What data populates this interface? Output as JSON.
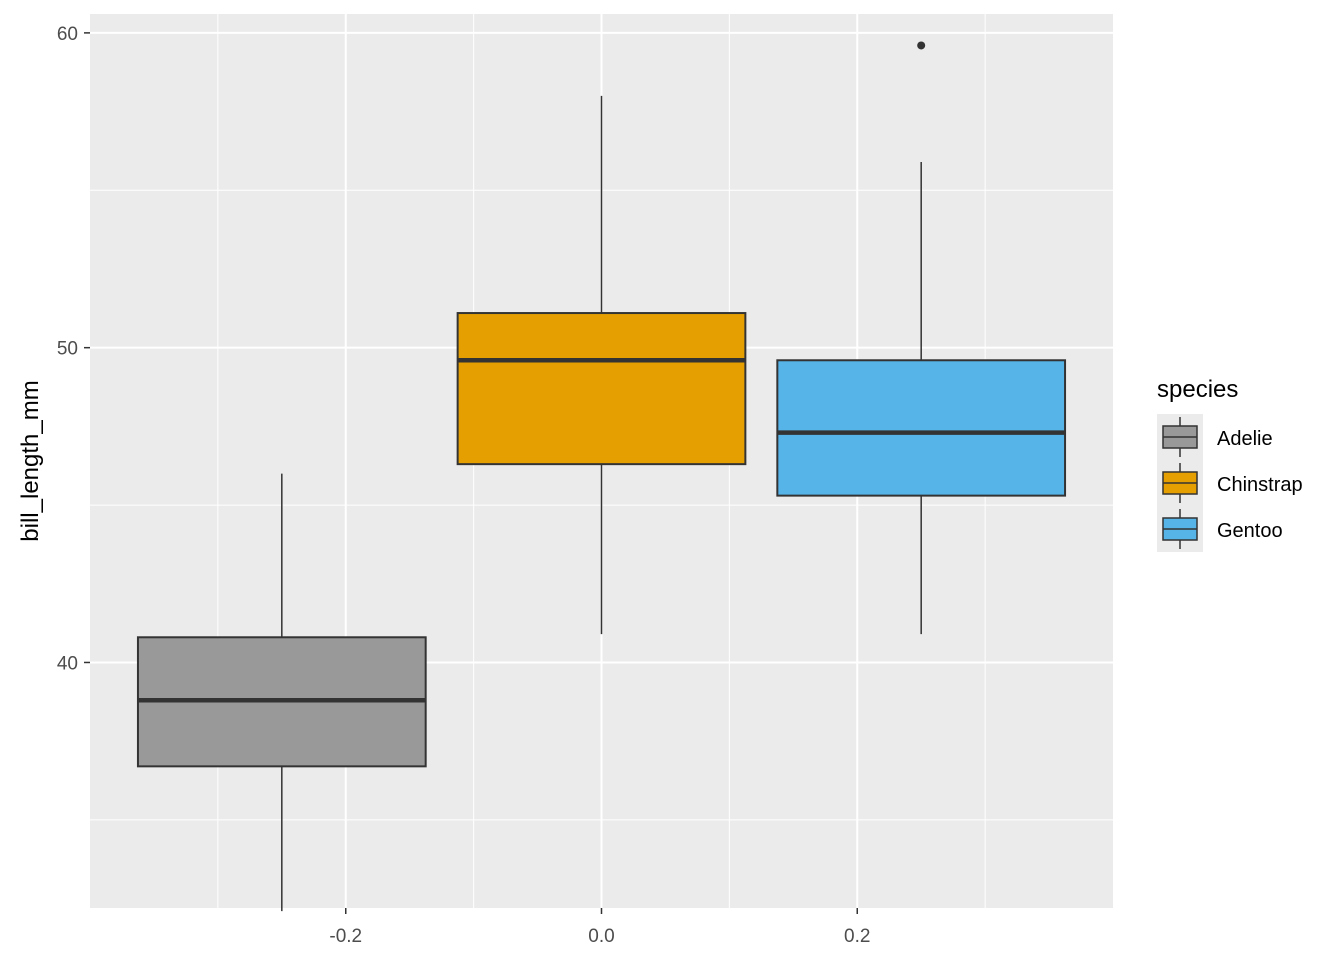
{
  "chart_data": {
    "type": "boxplot",
    "title": "",
    "xlabel": "",
    "ylabel": "bill_length_mm",
    "xlim": [
      -0.4,
      0.4
    ],
    "ylim": [
      32.2,
      60.6
    ],
    "x_ticks": [
      -0.2,
      0.0,
      0.2
    ],
    "x_tick_labels": [
      "-0.2",
      "0.0",
      "0.2"
    ],
    "y_ticks": [
      40,
      50,
      60
    ],
    "y_tick_labels": [
      "40",
      "50",
      "60"
    ],
    "grid": true,
    "panel_background": "#ebebeb",
    "legend": {
      "title": "species",
      "position": "right",
      "entries": [
        {
          "label": "Adelie",
          "color": "#999999"
        },
        {
          "label": "Chinstrap",
          "color": "#e69f00"
        },
        {
          "label": "Gentoo",
          "color": "#56b4e9"
        }
      ]
    },
    "series": [
      {
        "name": "Adelie",
        "color": "#999999",
        "x_center": -0.25,
        "box_width": 0.225,
        "min": 32.1,
        "q1": 36.7,
        "median": 38.8,
        "q3": 40.8,
        "max": 46.0,
        "outliers": []
      },
      {
        "name": "Chinstrap",
        "color": "#e69f00",
        "x_center": 0.0,
        "box_width": 0.225,
        "min": 40.9,
        "q1": 46.3,
        "median": 49.6,
        "q3": 51.1,
        "max": 58.0,
        "outliers": []
      },
      {
        "name": "Gentoo",
        "color": "#56b4e9",
        "x_center": 0.25,
        "box_width": 0.225,
        "min": 40.9,
        "q1": 45.3,
        "median": 47.3,
        "q3": 49.6,
        "max": 55.9,
        "outliers": [
          59.6
        ]
      }
    ]
  }
}
